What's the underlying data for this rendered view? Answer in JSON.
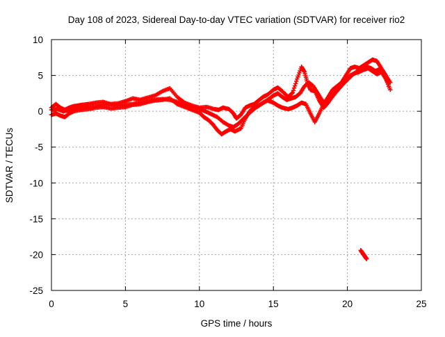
{
  "chart_data": {
    "type": "scatter",
    "title": "Day 108 of 2023, Sidereal Day-to-day VTEC variation (SDTVAR) for receiver rio2",
    "xlabel": "GPS time / hours",
    "ylabel": "SDTVAR / TECUs",
    "xlim": [
      0,
      25
    ],
    "ylim": [
      -25,
      10
    ],
    "xticks": [
      0,
      5,
      10,
      15,
      20,
      25
    ],
    "yticks": [
      -25,
      -20,
      -15,
      -10,
      -5,
      0,
      5,
      10
    ],
    "grid": true,
    "marker": "plus",
    "series": [
      {
        "name": "SDTVAR",
        "color": "#ff0000",
        "tracks": [
          {
            "x": [
              0.0,
              0.3,
              0.6,
              0.9,
              1.2,
              1.5,
              1.8,
              2.1,
              2.5,
              3.0,
              3.5,
              4.0,
              4.5,
              5.0,
              5.5,
              6.0,
              6.5,
              7.0,
              7.5,
              8.0,
              8.5,
              9.0,
              9.5,
              10.0,
              10.5,
              11.0,
              11.3,
              11.6,
              12.0,
              12.3,
              12.5,
              12.8,
              13.1,
              13.4,
              13.7,
              14.0,
              14.3,
              14.6,
              15.0,
              15.3,
              15.6,
              16.0,
              16.3,
              16.6,
              16.9,
              17.1,
              17.3,
              17.5,
              17.8,
              18.1,
              18.4,
              18.7,
              19.0,
              19.3,
              19.6,
              19.9,
              20.2,
              20.5,
              20.8,
              21.1,
              21.4,
              21.7,
              22.0,
              22.3,
              22.6,
              22.9
            ],
            "y": [
              0.5,
              1.0,
              0.5,
              0.2,
              0.5,
              0.7,
              0.8,
              0.9,
              1.0,
              1.2,
              1.3,
              1.0,
              1.1,
              1.4,
              1.8,
              1.6,
              1.9,
              2.2,
              2.8,
              3.2,
              2.0,
              1.2,
              0.8,
              0.5,
              0.6,
              0.3,
              0.2,
              0.5,
              0.3,
              -0.3,
              -1.0,
              -0.5,
              0.5,
              0.8,
              1.0,
              1.5,
              2.0,
              2.3,
              3.0,
              3.3,
              2.8,
              2.0,
              2.6,
              4.5,
              6.2,
              5.5,
              4.0,
              3.0,
              2.8,
              1.5,
              0.5,
              1.2,
              2.2,
              3.0,
              4.0,
              5.0,
              6.0,
              6.2,
              6.0,
              6.4,
              6.8,
              7.2,
              7.0,
              6.0,
              5.0,
              4.0
            ]
          },
          {
            "x": [
              0.0,
              0.3,
              0.6,
              0.9,
              1.2,
              1.5,
              2.0,
              2.5,
              3.0,
              3.5,
              4.0,
              4.5,
              5.0,
              5.5,
              6.0,
              6.5,
              7.0,
              7.5,
              8.0,
              8.5,
              9.0,
              9.5,
              10.0,
              10.3,
              10.6,
              10.9,
              11.2,
              11.5,
              11.8,
              12.1,
              12.4,
              12.8,
              13.1,
              13.4,
              13.7,
              14.0,
              14.3,
              14.6,
              15.0,
              15.3,
              15.6,
              16.0,
              16.3,
              16.6,
              16.9,
              17.2,
              17.5,
              17.8,
              18.1,
              18.4,
              18.7,
              19.0,
              19.3,
              19.6,
              19.9,
              20.2,
              20.5,
              20.8,
              21.1,
              21.4,
              21.7,
              22.0,
              22.3,
              22.6,
              22.9
            ],
            "y": [
              -0.5,
              -0.3,
              -0.6,
              -0.8,
              -0.3,
              0.0,
              0.2,
              0.3,
              0.5,
              0.6,
              0.4,
              0.5,
              0.6,
              0.9,
              1.0,
              1.3,
              1.5,
              1.6,
              1.8,
              1.0,
              0.6,
              0.2,
              -0.2,
              -0.8,
              -1.2,
              -1.8,
              -2.6,
              -3.2,
              -2.8,
              -2.5,
              -2.8,
              -2.4,
              -1.0,
              0.0,
              0.6,
              0.8,
              1.2,
              1.5,
              1.2,
              0.8,
              0.5,
              0.3,
              0.5,
              0.8,
              1.2,
              1.0,
              -0.3,
              -1.5,
              -0.3,
              1.0,
              2.0,
              3.0,
              3.5,
              4.0,
              4.5,
              5.0,
              5.3,
              5.5,
              5.8,
              6.0,
              5.6,
              5.2,
              5.5,
              4.5,
              3.0
            ]
          },
          {
            "x": [
              0.0,
              0.4,
              0.8,
              1.2,
              1.6,
              2.0,
              2.5,
              3.0,
              3.5,
              4.0,
              4.5,
              5.0,
              5.5,
              6.0,
              6.5,
              7.0,
              7.5,
              8.0,
              8.5,
              9.0,
              9.5,
              10.0,
              10.4,
              10.8,
              11.2,
              11.6,
              12.0,
              12.3,
              12.6,
              12.9,
              13.2,
              13.5,
              13.8,
              14.1,
              14.4,
              14.7,
              15.0,
              15.3,
              15.6,
              15.9,
              16.2,
              16.5,
              16.8,
              17.1,
              17.4,
              17.7,
              18.0,
              18.3,
              18.6,
              18.9,
              19.2,
              19.5,
              19.8,
              20.1,
              20.4,
              20.7,
              21.0,
              21.3,
              21.6,
              21.9,
              22.2,
              22.5,
              22.8
            ],
            "y": [
              0.2,
              0.3,
              0.0,
              0.2,
              0.4,
              0.4,
              0.6,
              0.7,
              0.9,
              1.0,
              0.8,
              0.9,
              1.0,
              1.2,
              1.4,
              1.6,
              1.7,
              1.6,
              1.3,
              0.9,
              0.6,
              0.3,
              0.0,
              -0.4,
              -0.8,
              -1.5,
              -2.0,
              -2.2,
              -1.8,
              -1.2,
              -0.6,
              0.0,
              0.5,
              0.9,
              1.3,
              1.7,
              2.2,
              2.5,
              2.0,
              1.6,
              1.8,
              2.0,
              2.5,
              3.5,
              4.0,
              3.5,
              2.5,
              1.5,
              1.0,
              1.8,
              2.6,
              3.3,
              4.0,
              4.6,
              5.2,
              5.6,
              5.9,
              6.2,
              6.0,
              5.6,
              5.9,
              5.3,
              3.5
            ]
          },
          {
            "x": [
              20.9,
              21.0,
              21.1,
              21.2,
              21.3
            ],
            "y": [
              -19.4,
              -19.7,
              -20.0,
              -20.3,
              -20.6
            ]
          }
        ]
      }
    ]
  }
}
